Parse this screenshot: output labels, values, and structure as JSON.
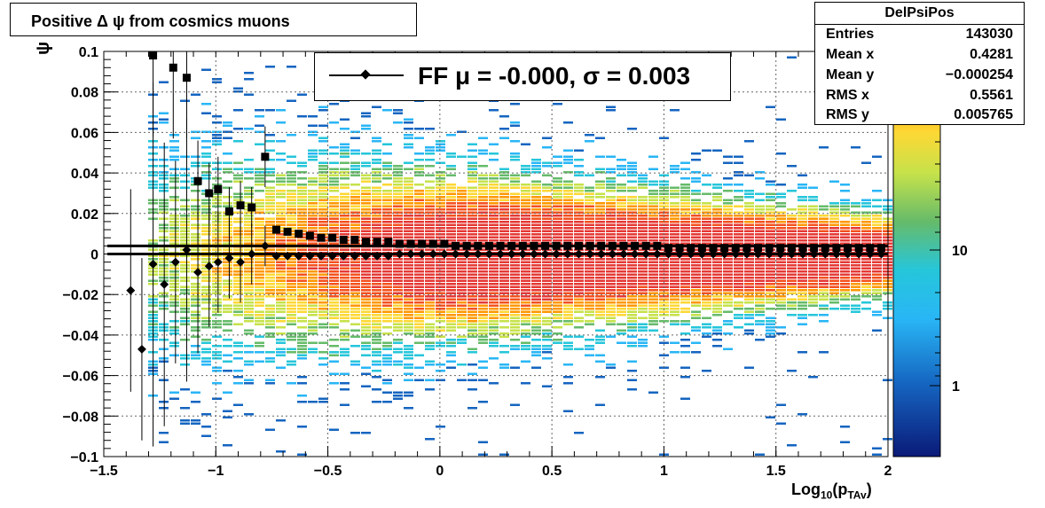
{
  "title": "Positive Δ ψ from cosmics muons",
  "stats": {
    "name": "DelPsiPos",
    "rows": [
      {
        "key": "Entries",
        "value": "143030"
      },
      {
        "key": "Mean x",
        "value": "0.4281"
      },
      {
        "key": "Mean y",
        "value": "−0.000254"
      },
      {
        "key": "RMS x",
        "value": "0.5561"
      },
      {
        "key": "RMS y",
        "value": "0.005765"
      }
    ]
  },
  "legend": {
    "label": "FF μ = -0.000, σ =   0.003"
  },
  "axes": {
    "xlabel_main": "Log",
    "xlabel_sub": "10",
    "xlabel_rest": "(p",
    "xlabel_sub2": "TAv",
    "xlabel_end": ")",
    "ylabel": "ψ"
  },
  "colors": {
    "palette": [
      "#0b1a78",
      "#1565c0",
      "#29b6f6",
      "#26c6da",
      "#66bb6a",
      "#c6e24a",
      "#fdd835",
      "#ff9800",
      "#f4511e",
      "#e53935"
    ],
    "markers": "#000000"
  },
  "chart_data": {
    "type": "heatmap",
    "x_range": [
      -1.5,
      2
    ],
    "y_range": [
      -0.1,
      0.1
    ],
    "x_ticks": [
      "−1.5",
      "−1",
      "−0.5",
      "0",
      "0.5",
      "1",
      "1.5",
      "2"
    ],
    "x_tick_values": [
      -1.5,
      -1,
      -0.5,
      0,
      0.5,
      1,
      1.5,
      2
    ],
    "y_ticks": [
      "−0.1",
      "−0.08",
      "−0.06",
      "−0.04",
      "−0.02",
      "0",
      "0.02",
      "0.04",
      "0.06",
      "0.08",
      "0.1"
    ],
    "y_tick_values": [
      -0.1,
      -0.08,
      -0.06,
      -0.04,
      -0.02,
      0,
      0.02,
      0.04,
      0.06,
      0.08,
      0.1
    ],
    "z_scale": "log",
    "z_ticks": [
      "10",
      "1"
    ],
    "z_tick_values": [
      10,
      1
    ],
    "grid": true,
    "series": [
      {
        "marker": "square",
        "x": [
          -1.28,
          -1.19,
          -1.13,
          -1.08,
          -1.03,
          -0.99,
          -0.94,
          -0.89,
          -0.84,
          -0.78,
          -0.73,
          -0.68,
          -0.63,
          -0.58,
          -0.53,
          -0.48,
          -0.43,
          -0.38,
          -0.33,
          -0.28,
          -0.23,
          -0.18,
          -0.13,
          -0.08,
          -0.03,
          0.02,
          0.07,
          0.12,
          0.17,
          0.22,
          0.27,
          0.32,
          0.37,
          0.42,
          0.47,
          0.52,
          0.57,
          0.62,
          0.67,
          0.72,
          0.77,
          0.82,
          0.87,
          0.92,
          0.97,
          1.02,
          1.07,
          1.12,
          1.17,
          1.22,
          1.27,
          1.32,
          1.37,
          1.42,
          1.47,
          1.52,
          1.57,
          1.62,
          1.67,
          1.72,
          1.77,
          1.82,
          1.87,
          1.92,
          1.97
        ],
        "y": [
          0.098,
          0.092,
          0.087,
          0.036,
          0.03,
          0.032,
          0.021,
          0.024,
          0.023,
          0.048,
          0.012,
          0.011,
          0.01,
          0.009,
          0.008,
          0.008,
          0.007,
          0.007,
          0.006,
          0.006,
          0.006,
          0.005,
          0.005,
          0.005,
          0.005,
          0.005,
          0.004,
          0.004,
          0.004,
          0.004,
          0.004,
          0.004,
          0.004,
          0.004,
          0.004,
          0.004,
          0.004,
          0.004,
          0.004,
          0.004,
          0.004,
          0.004,
          0.004,
          0.004,
          0.004,
          0.003,
          0.003,
          0.003,
          0.003,
          0.003,
          0.003,
          0.003,
          0.003,
          0.003,
          0.003,
          0.003,
          0.003,
          0.003,
          0.003,
          0.003,
          0.003,
          0.003,
          0.003,
          0.003,
          0.003
        ],
        "yerr": [
          0.04,
          0.035,
          0.03,
          0.02,
          0.015,
          0.016,
          0.012,
          0.012,
          0.01,
          0.015,
          0.002,
          0.001,
          0.001,
          0.001,
          0.001,
          0.001,
          0.001,
          0.001,
          0.001,
          0.001,
          0.0005,
          0.0005,
          0.0005,
          0.0005,
          0.0005,
          0.0005,
          0.0005,
          0.0005,
          0.0005,
          0.0005,
          0.0005,
          0.0005,
          0.0005,
          0.0005,
          0.0005,
          0.0005,
          0.0005,
          0.0005,
          0.0005,
          0.0005,
          0.0005,
          0.0005,
          0.0005,
          0.0005,
          0.0005,
          0.0005,
          0.0005,
          0.0005,
          0.0005,
          0.0005,
          0.0005,
          0.0005,
          0.0005,
          0.0005,
          0.0005,
          0.0005,
          0.0005,
          0.0005,
          0.0005,
          0.0005,
          0.0005,
          0.0005,
          0.0005,
          0.0005,
          0.0005
        ]
      },
      {
        "marker": "diamond",
        "name": "FF",
        "x": [
          -1.38,
          -1.33,
          -1.28,
          -1.23,
          -1.18,
          -1.13,
          -1.08,
          -1.03,
          -0.99,
          -0.94,
          -0.89,
          -0.84,
          -0.78,
          -0.73,
          -0.68,
          -0.63,
          -0.58,
          -0.53,
          -0.48,
          -0.43,
          -0.38,
          -0.33,
          -0.28,
          -0.23,
          -0.18,
          -0.13,
          -0.08,
          -0.03,
          0.02,
          0.07,
          0.12,
          0.17,
          0.22,
          0.27,
          0.32,
          0.37,
          0.42,
          0.47,
          0.52,
          0.57,
          0.62,
          0.67,
          0.72,
          0.77,
          0.82,
          0.87,
          0.92,
          0.97,
          1.02,
          1.07,
          1.12,
          1.17,
          1.22,
          1.27,
          1.32,
          1.37,
          1.42,
          1.47,
          1.52,
          1.57,
          1.62,
          1.67,
          1.72,
          1.77,
          1.82,
          1.87,
          1.92,
          1.97
        ],
        "y": [
          -0.018,
          -0.047,
          -0.005,
          -0.015,
          -0.004,
          0.002,
          -0.009,
          -0.006,
          -0.004,
          -0.002,
          -0.004,
          0.0,
          0.004,
          -0.001,
          -0.001,
          -0.001,
          -0.001,
          -0.001,
          -0.001,
          -0.001,
          -0.001,
          -0.001,
          -0.001,
          -0.001,
          0.0,
          0.0,
          0.0,
          0.0,
          0.0,
          0.0,
          0.0,
          0.0,
          0.0,
          0.0,
          0.0,
          0.0,
          0.0,
          0.0,
          0.0,
          0.0,
          0.0,
          0.0,
          0.0,
          0.0,
          0.0,
          0.0,
          0.0,
          0.0,
          0.0,
          0.0,
          0.0,
          0.0,
          0.0,
          0.0,
          0.0,
          0.0,
          0.0,
          0.0,
          0.0,
          0.0,
          0.0,
          0.0,
          0.0,
          0.0,
          0.0,
          0.0,
          0.0,
          0.0
        ],
        "yerr": [
          0.05,
          0.045,
          0.09,
          0.07,
          0.05,
          0.065,
          0.04,
          0.03,
          0.025,
          0.02,
          0.02,
          0.015,
          0.01,
          0.002,
          0.001,
          0.001,
          0.001,
          0.001,
          0.001,
          0.001,
          0.001,
          0.001,
          0.001,
          0.0005,
          0.0005,
          0.0005,
          0.0005,
          0.0005,
          0.0005,
          0.0005,
          0.0005,
          0.0005,
          0.0005,
          0.0005,
          0.0005,
          0.0005,
          0.0005,
          0.0005,
          0.0005,
          0.0005,
          0.0005,
          0.0005,
          0.0005,
          0.0005,
          0.0005,
          0.0005,
          0.0005,
          0.0005,
          0.0005,
          0.0005,
          0.0005,
          0.0005,
          0.0005,
          0.0005,
          0.0005,
          0.0005,
          0.0005,
          0.0005,
          0.0005,
          0.0005,
          0.0005,
          0.0005,
          0.0005,
          0.0005,
          0.0005,
          0.0005,
          0.0005,
          0.0005
        ]
      }
    ],
    "fit_lines": [
      {
        "y": 0.004,
        "x_range": [
          -1.5,
          2
        ]
      },
      {
        "y": 0.0,
        "x_range": [
          -1.5,
          2
        ]
      }
    ]
  }
}
